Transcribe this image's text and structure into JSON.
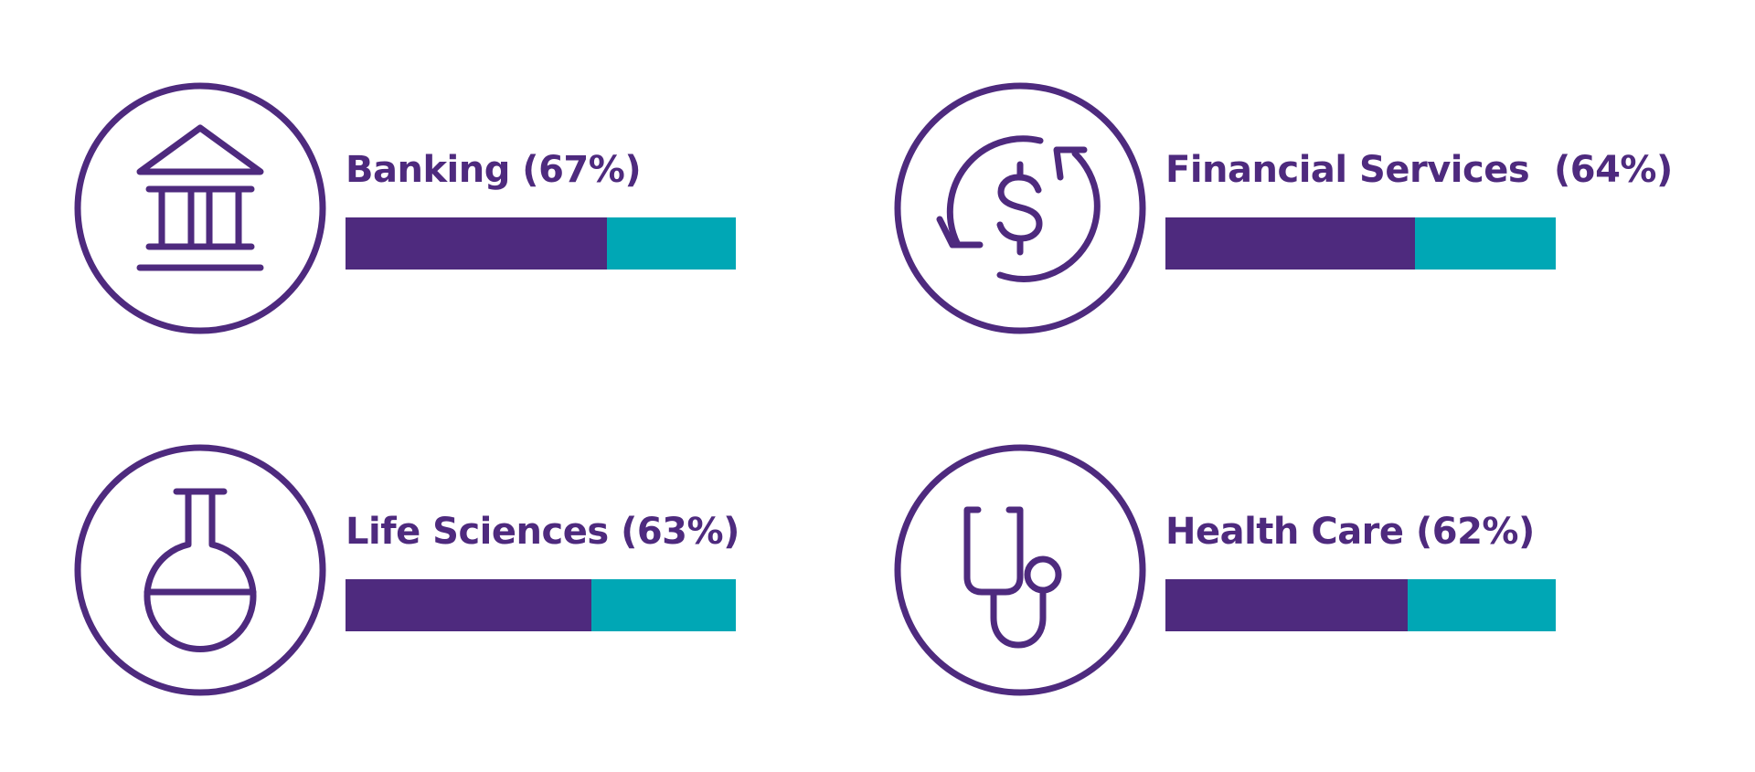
{
  "colors": {
    "primary": "#4e2a7e",
    "accent": "#00a7b5",
    "background": "#ffffff"
  },
  "chart_data": {
    "type": "bar",
    "categories": [
      "Banking",
      "Financial Services",
      "Life Sciences",
      "Health Care"
    ],
    "values": [
      67,
      64,
      63,
      62
    ],
    "unit": "%",
    "ylim": [
      0,
      100
    ]
  },
  "items": [
    {
      "label": "Banking (67%)",
      "value": 67,
      "icon": "bank-icon"
    },
    {
      "label": "Financial Services  (64%)",
      "value": 64,
      "icon": "dollar-cycle-icon"
    },
    {
      "label": "Life Sciences (63%)",
      "value": 63,
      "icon": "flask-icon"
    },
    {
      "label": "Health Care (62%)",
      "value": 62,
      "icon": "stethoscope-icon"
    }
  ]
}
